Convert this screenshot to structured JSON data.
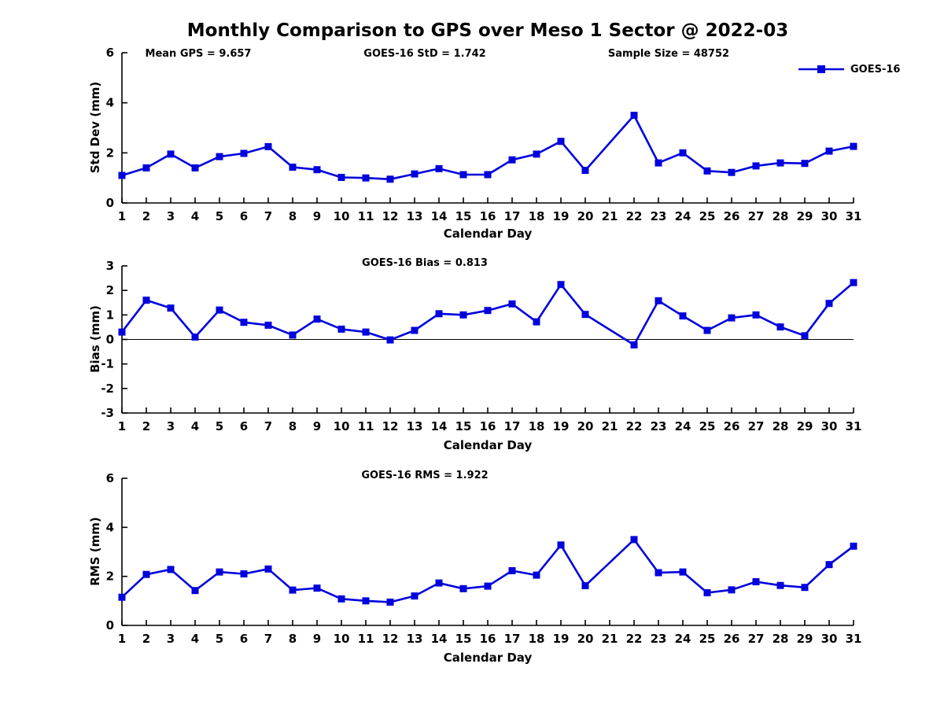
{
  "title": "Monthly Comparison to GPS over Meso 1 Sector @ 2022-03",
  "legend": {
    "label": "GOES-16",
    "marker": "square",
    "position": "top-right"
  },
  "colors": {
    "series": "#0000dd",
    "axis": "#000000",
    "text": "#000000",
    "background": "#ffffff"
  },
  "chart_data": [
    {
      "name": "std-dev",
      "type": "line",
      "annotations": [
        "Mean GPS = 9.657",
        "GOES-16 StD = 1.742",
        "Sample Size = 48752"
      ],
      "ylabel": "Std Dev (mm)",
      "xlabel": "Calendar Day",
      "ylim": [
        0,
        6
      ],
      "yticks": [
        0,
        2,
        4,
        6
      ],
      "grid": false,
      "zero_line": false,
      "x": [
        1,
        2,
        3,
        4,
        5,
        6,
        7,
        8,
        9,
        10,
        11,
        12,
        13,
        14,
        15,
        16,
        17,
        18,
        19,
        20,
        21,
        22,
        23,
        24,
        25,
        26,
        27,
        28,
        29,
        30,
        31
      ],
      "series": [
        {
          "name": "GOES-16",
          "values": [
            1.1,
            1.4,
            1.95,
            1.4,
            1.85,
            1.98,
            2.25,
            1.43,
            1.33,
            1.02,
            1.0,
            0.95,
            1.16,
            1.37,
            1.13,
            1.13,
            1.72,
            1.95,
            2.46,
            1.3,
            null,
            3.5,
            1.6,
            2.0,
            1.28,
            1.22,
            1.48,
            1.6,
            1.58,
            2.07,
            2.26
          ]
        }
      ]
    },
    {
      "name": "bias",
      "type": "line",
      "title": "GOES-16 Bias = 0.813",
      "ylabel": "Bias (mm)",
      "xlabel": "Calendar Day",
      "ylim": [
        -3,
        3
      ],
      "yticks": [
        3,
        2,
        1,
        0,
        -1,
        -2,
        -3
      ],
      "grid": false,
      "zero_line": true,
      "x": [
        1,
        2,
        3,
        4,
        5,
        6,
        7,
        8,
        9,
        10,
        11,
        12,
        13,
        14,
        15,
        16,
        17,
        18,
        19,
        20,
        21,
        22,
        23,
        24,
        25,
        26,
        27,
        28,
        29,
        30,
        31
      ],
      "series": [
        {
          "name": "GOES-16",
          "values": [
            0.3,
            1.6,
            1.28,
            0.1,
            1.2,
            0.7,
            0.58,
            0.18,
            0.83,
            0.42,
            0.3,
            -0.02,
            0.37,
            1.05,
            1.0,
            1.18,
            1.45,
            0.72,
            2.24,
            1.02,
            null,
            -0.22,
            1.58,
            0.96,
            0.37,
            0.88,
            1.0,
            0.51,
            0.15,
            1.47,
            2.32
          ]
        }
      ]
    },
    {
      "name": "rms",
      "type": "line",
      "title": "GOES-16 RMS = 1.922",
      "ylabel": "RMS (mm)",
      "xlabel": "Calendar Day",
      "ylim": [
        0,
        6
      ],
      "yticks": [
        0,
        2,
        4,
        6
      ],
      "grid": false,
      "zero_line": false,
      "x": [
        1,
        2,
        3,
        4,
        5,
        6,
        7,
        8,
        9,
        10,
        11,
        12,
        13,
        14,
        15,
        16,
        17,
        18,
        19,
        20,
        21,
        22,
        23,
        24,
        25,
        26,
        27,
        28,
        29,
        30,
        31
      ],
      "series": [
        {
          "name": "GOES-16",
          "values": [
            1.15,
            2.08,
            2.28,
            1.42,
            2.18,
            2.1,
            2.3,
            1.44,
            1.52,
            1.08,
            1.0,
            0.95,
            1.2,
            1.73,
            1.5,
            1.6,
            2.23,
            2.05,
            3.28,
            1.62,
            null,
            3.5,
            2.15,
            2.18,
            1.33,
            1.45,
            1.78,
            1.63,
            1.55,
            2.48,
            3.23
          ]
        }
      ]
    }
  ]
}
